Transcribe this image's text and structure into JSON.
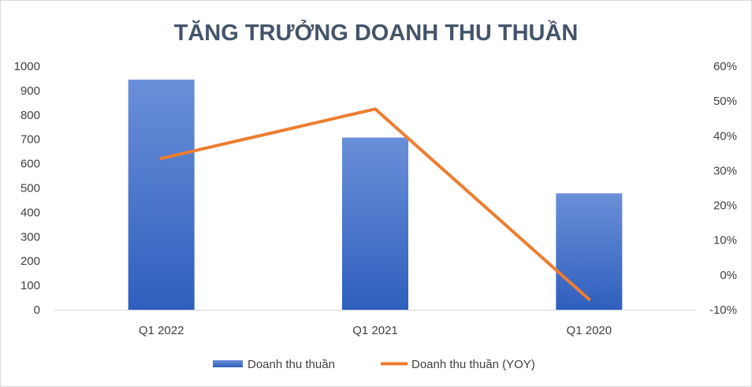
{
  "chart_data": {
    "type": "bar+line",
    "title": "TĂNG TRƯỞNG DOANH THU THUẦN",
    "categories": [
      "Q1 2022",
      "Q1 2021",
      "Q1 2020"
    ],
    "series": [
      {
        "name": "Doanh thu thuần",
        "type": "bar",
        "axis": "left",
        "values": [
          945,
          707,
          478
        ],
        "color": "#4472c4"
      },
      {
        "name": "Doanh thu thuần (YOY)",
        "type": "line",
        "axis": "right",
        "values": [
          0.335,
          0.477,
          -0.07
        ],
        "color": "#ed7d31"
      }
    ],
    "y_left": {
      "min": 0,
      "max": 1000,
      "step": 100,
      "ticks": [
        "0",
        "100",
        "200",
        "300",
        "400",
        "500",
        "600",
        "700",
        "800",
        "900",
        "1000"
      ]
    },
    "y_right": {
      "min": -0.1,
      "max": 0.6,
      "step": 0.1,
      "ticks": [
        "-10%",
        "0%",
        "10%",
        "20%",
        "30%",
        "40%",
        "50%",
        "60%"
      ]
    },
    "grid": false,
    "legend_position": "bottom"
  }
}
